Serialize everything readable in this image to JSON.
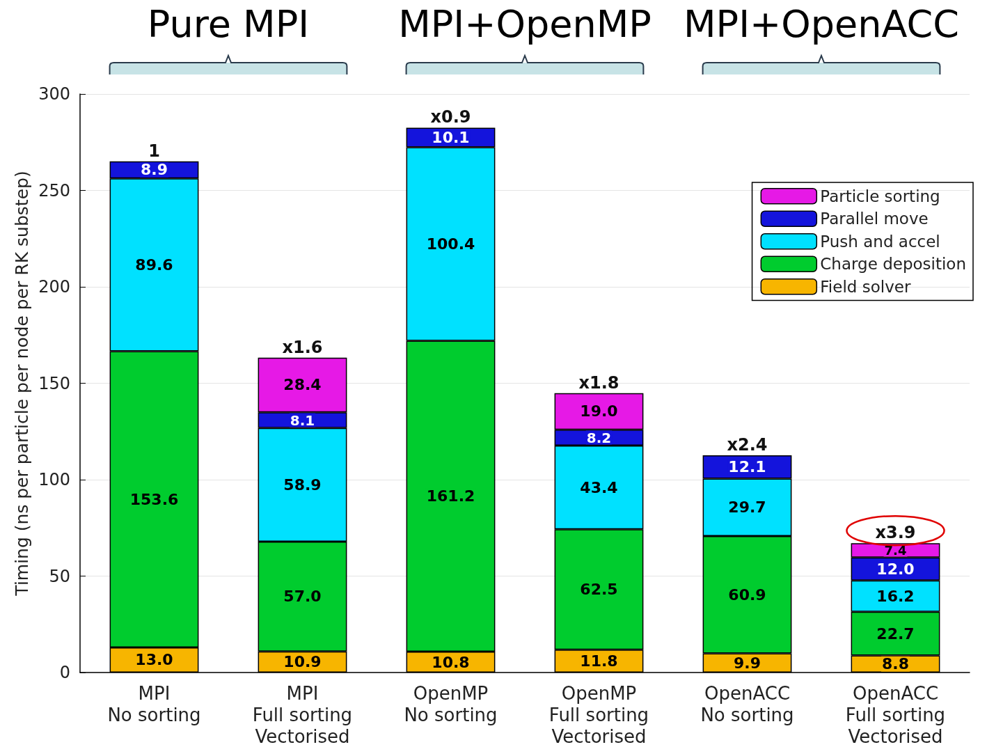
{
  "chart_data": {
    "type": "bar",
    "stacked": true,
    "ylabel": "Timing (ns per particle per node per RK substep)",
    "categories": [
      "MPI\nNo sorting",
      "MPI\nFull sorting\nVectorised",
      "OpenMP\nNo sorting",
      "OpenMP\nFull sorting\nVectorised",
      "OpenACC\nNo sorting",
      "OpenACC\nFull sorting\nVectorised"
    ],
    "series": [
      {
        "name": "Field solver",
        "color": "#f7b500",
        "values": [
          13.0,
          10.9,
          10.8,
          11.8,
          9.9,
          8.8
        ],
        "value_labels": [
          "13.0",
          "10.9",
          "10.8",
          "11.8",
          "9.9",
          "8.8"
        ]
      },
      {
        "name": "Charge deposition",
        "color": "#00cc2e",
        "values": [
          153.6,
          57.0,
          161.2,
          62.5,
          60.9,
          22.7
        ],
        "value_labels": [
          "153.6",
          "57.0",
          "161.2",
          "62.5",
          "60.9",
          "22.7"
        ]
      },
      {
        "name": "Push and accel",
        "color": "#00e1ff",
        "values": [
          89.6,
          58.9,
          100.4,
          43.4,
          29.7,
          16.2
        ],
        "value_labels": [
          "89.6",
          "58.9",
          "100.4",
          "43.4",
          "29.7",
          "16.2"
        ]
      },
      {
        "name": "Parallel move",
        "color": "#1414dc",
        "values": [
          8.9,
          8.1,
          10.1,
          8.2,
          12.1,
          12.0
        ],
        "value_labels": [
          "8.9",
          "8.1",
          "10.1",
          "8.2",
          "12.1",
          "12.0"
        ]
      },
      {
        "name": "Particle sorting",
        "color": "#e619e6",
        "values": [
          null,
          28.4,
          null,
          19.0,
          null,
          7.4
        ],
        "value_labels": [
          null,
          "28.4",
          null,
          "19.0",
          null,
          "7.4"
        ]
      }
    ],
    "annotations": [
      "Pure MPI",
      "MPI+OpenMP",
      "MPI+OpenACC",
      {
        "text": "1",
        "x": "MPI\nNo sorting",
        "y": 265.1
      },
      {
        "text": "x1.6",
        "x": "MPI\nFull sorting\nVectorised",
        "y": 163.3
      },
      {
        "text": "x0.9",
        "x": "OpenMP\nNo sorting",
        "y": 282.5
      },
      {
        "text": "x1.8",
        "x": "OpenMP\nFull sorting\nVectorised",
        "y": 144.9
      },
      {
        "text": "x2.4",
        "x": "OpenACC\nNo sorting",
        "y": 112.6
      },
      {
        "text": "x3.9",
        "x": "OpenACC\nFull sorting\nVectorised",
        "y": 67.1
      }
    ],
    "ylim": [
      0,
      300
    ],
    "yticks": [
      0,
      50,
      100,
      150,
      200,
      250,
      300
    ],
    "grid": "y",
    "legend": "top right"
  }
}
